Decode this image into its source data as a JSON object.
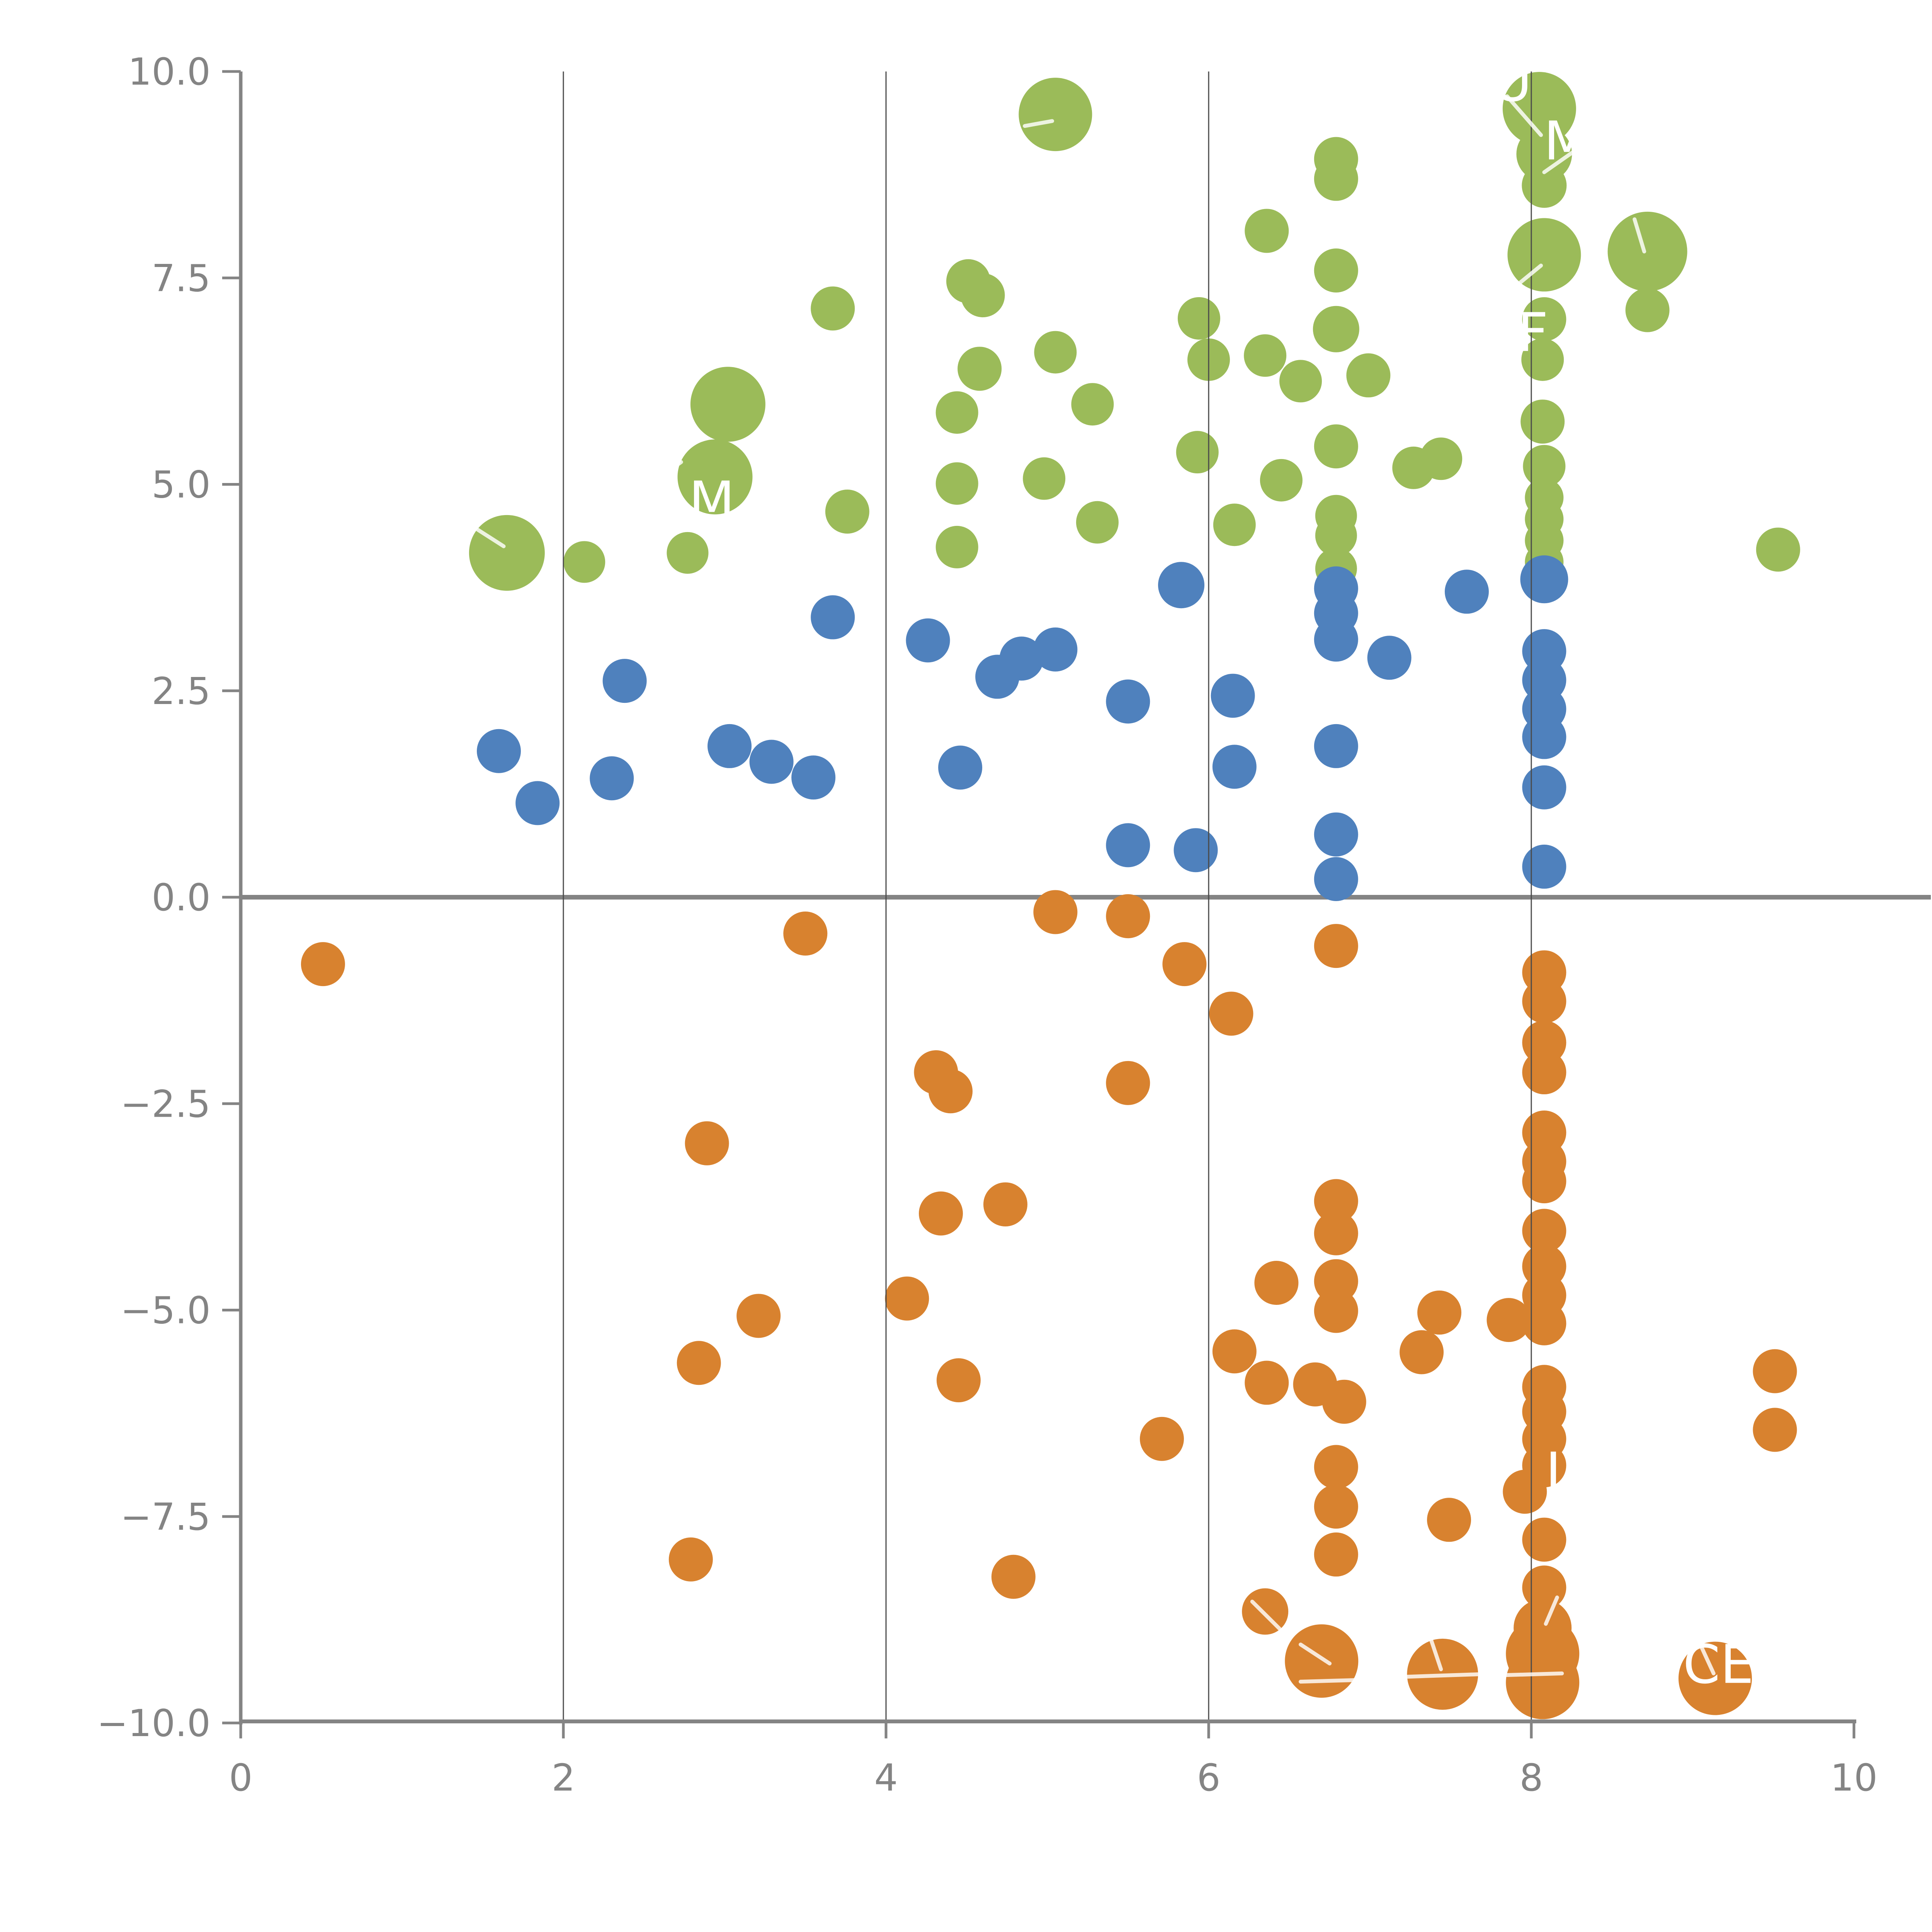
{
  "chart_data": {
    "type": "scatter",
    "title": "",
    "xlabel": "",
    "ylabel": "",
    "xlim": [
      0,
      10
    ],
    "ylim": [
      -10,
      10
    ],
    "x_ticks": [
      {
        "v": 0,
        "label": "0"
      },
      {
        "v": 2,
        "label": "2"
      },
      {
        "v": 4,
        "label": "4"
      },
      {
        "v": 6,
        "label": "6"
      },
      {
        "v": 8,
        "label": "8"
      },
      {
        "v": 10,
        "label": "10"
      }
    ],
    "y_ticks": [
      {
        "v": 10,
        "label": "10.0"
      },
      {
        "v": 7.5,
        "label": "7.5"
      },
      {
        "v": 5,
        "label": "5.0"
      },
      {
        "v": 2.5,
        "label": "2.5"
      },
      {
        "v": 0,
        "label": "0.0"
      },
      {
        "v": -2.5,
        "label": "−2.5"
      },
      {
        "v": -5,
        "label": "−5.0"
      },
      {
        "v": -7.5,
        "label": "−7.5"
      },
      {
        "v": -10,
        "label": "−10.0"
      }
    ],
    "gridlines_x": [
      2,
      4,
      6,
      8
    ],
    "zero_line_y": 0,
    "grid_on": true,
    "legend": "none",
    "colors": {
      "green": "#9BBB59",
      "blue": "#4F81BD",
      "orange": "#D8822F",
      "axis": "#848484",
      "gridline": "#4a4a4a",
      "zero_line": "#848484",
      "annotation": "#ffffff"
    },
    "series": [
      {
        "name": "green",
        "color": "#9BBB59",
        "points": [
          [
            1.65,
            4.17,
            98
          ],
          [
            2.13,
            4.06,
            54
          ],
          [
            2.77,
            4.17,
            54
          ],
          [
            3.02,
            5.97,
            97
          ],
          [
            2.94,
            5.09,
            97
          ],
          [
            3.67,
            7.13,
            57
          ],
          [
            3.76,
            4.67,
            57
          ],
          [
            4.44,
            5.87,
            55
          ],
          [
            4.44,
            5.01,
            55
          ],
          [
            4.44,
            4.24,
            55
          ],
          [
            4.51,
            7.46,
            57
          ],
          [
            4.6,
            7.29,
            57
          ],
          [
            4.58,
            6.4,
            57
          ],
          [
            4.98,
            5.07,
            55
          ],
          [
            5.05,
            9.48,
            95
          ],
          [
            5.05,
            6.6,
            55
          ],
          [
            5.28,
            5.97,
            55
          ],
          [
            5.31,
            4.54,
            55
          ],
          [
            5.93,
            5.39,
            55
          ],
          [
            5.94,
            7.01,
            55
          ],
          [
            6.0,
            6.51,
            55
          ],
          [
            6.16,
            4.51,
            55
          ],
          [
            6.35,
            6.56,
            55
          ],
          [
            6.36,
            8.07,
            57
          ],
          [
            6.45,
            5.05,
            55
          ],
          [
            6.57,
            6.25,
            55
          ],
          [
            6.79,
            8.94,
            57
          ],
          [
            6.79,
            8.7,
            57
          ],
          [
            6.79,
            7.59,
            57
          ],
          [
            6.79,
            6.88,
            60
          ],
          [
            6.79,
            5.46,
            57
          ],
          [
            6.79,
            4.62,
            54
          ],
          [
            6.79,
            4.38,
            54
          ],
          [
            6.79,
            3.98,
            54
          ],
          [
            6.99,
            6.32,
            57
          ],
          [
            7.27,
            5.2,
            55
          ],
          [
            7.44,
            5.31,
            55
          ],
          [
            8.05,
            9.55,
            95
          ],
          [
            8.08,
            9.0,
            72
          ],
          [
            8.08,
            8.62,
            58
          ],
          [
            8.08,
            7.78,
            95
          ],
          [
            8.08,
            7.0,
            57
          ],
          [
            8.07,
            6.51,
            55
          ],
          [
            8.07,
            5.76,
            57
          ],
          [
            8.08,
            5.22,
            55
          ],
          [
            8.08,
            4.84,
            50
          ],
          [
            8.08,
            4.58,
            50
          ],
          [
            8.08,
            4.32,
            50
          ],
          [
            8.08,
            4.06,
            50
          ],
          [
            8.72,
            7.82,
            103
          ],
          [
            8.72,
            7.11,
            57
          ],
          [
            9.53,
            4.21,
            57
          ]
        ]
      },
      {
        "name": "blue",
        "color": "#4F81BD",
        "points": [
          [
            1.6,
            1.77,
            57
          ],
          [
            1.84,
            1.14,
            57
          ],
          [
            2.3,
            1.44,
            57
          ],
          [
            2.38,
            2.62,
            57
          ],
          [
            3.03,
            1.83,
            57
          ],
          [
            3.29,
            1.64,
            57
          ],
          [
            3.55,
            1.45,
            57
          ],
          [
            3.67,
            3.39,
            57
          ],
          [
            4.26,
            3.11,
            57
          ],
          [
            4.46,
            1.57,
            57
          ],
          [
            4.69,
            2.67,
            57
          ],
          [
            4.84,
            2.89,
            57
          ],
          [
            5.05,
            3.0,
            57
          ],
          [
            5.5,
            2.37,
            57
          ],
          [
            5.5,
            0.63,
            57
          ],
          [
            5.83,
            3.78,
            60
          ],
          [
            5.92,
            0.57,
            57
          ],
          [
            6.15,
            2.44,
            57
          ],
          [
            6.16,
            1.58,
            57
          ],
          [
            6.79,
            3.74,
            57
          ],
          [
            6.79,
            3.44,
            57
          ],
          [
            6.79,
            3.12,
            57
          ],
          [
            6.79,
            1.83,
            57
          ],
          [
            6.79,
            0.76,
            57
          ],
          [
            6.79,
            0.22,
            57
          ],
          [
            7.12,
            2.9,
            57
          ],
          [
            7.6,
            3.7,
            57
          ],
          [
            8.08,
            3.85,
            62
          ],
          [
            8.08,
            2.98,
            57
          ],
          [
            8.08,
            2.63,
            57
          ],
          [
            8.08,
            2.28,
            57
          ],
          [
            8.08,
            1.94,
            57
          ],
          [
            8.08,
            1.33,
            57
          ],
          [
            8.08,
            0.37,
            57
          ]
        ]
      },
      {
        "name": "orange",
        "color": "#D8822F",
        "points": [
          [
            0.51,
            -0.81,
            57
          ],
          [
            2.79,
            -8.02,
            57
          ],
          [
            2.84,
            -5.64,
            57
          ],
          [
            2.89,
            -2.98,
            57
          ],
          [
            3.21,
            -5.07,
            57
          ],
          [
            3.5,
            -0.44,
            57
          ],
          [
            4.13,
            -4.86,
            57
          ],
          [
            4.31,
            -2.12,
            57
          ],
          [
            4.4,
            -2.35,
            57
          ],
          [
            4.34,
            -3.83,
            57
          ],
          [
            4.45,
            -5.85,
            57
          ],
          [
            4.74,
            -3.72,
            57
          ],
          [
            4.79,
            -8.23,
            57
          ],
          [
            5.05,
            -0.18,
            57
          ],
          [
            5.5,
            -0.23,
            57
          ],
          [
            5.5,
            -2.25,
            57
          ],
          [
            5.71,
            -6.56,
            57
          ],
          [
            5.85,
            -0.81,
            57
          ],
          [
            6.14,
            -1.41,
            57
          ],
          [
            6.16,
            -5.5,
            57
          ],
          [
            6.36,
            -5.88,
            57
          ],
          [
            6.66,
            -5.9,
            57
          ],
          [
            6.84,
            -6.11,
            57
          ],
          [
            6.42,
            -4.67,
            57
          ],
          [
            6.35,
            -8.65,
            60
          ],
          [
            6.7,
            -9.25,
            95
          ],
          [
            6.79,
            -0.59,
            57
          ],
          [
            6.79,
            -3.68,
            57
          ],
          [
            6.79,
            -4.07,
            57
          ],
          [
            6.79,
            -4.65,
            57
          ],
          [
            6.79,
            -5.01,
            57
          ],
          [
            6.79,
            -6.9,
            57
          ],
          [
            6.79,
            -7.38,
            57
          ],
          [
            6.79,
            -7.96,
            57
          ],
          [
            7.32,
            -5.51,
            57
          ],
          [
            7.43,
            -5.03,
            57
          ],
          [
            7.49,
            -7.54,
            57
          ],
          [
            7.45,
            -9.41,
            92
          ],
          [
            7.86,
            -5.12,
            57
          ],
          [
            8.08,
            -0.91,
            57
          ],
          [
            8.08,
            -1.26,
            57
          ],
          [
            8.08,
            -1.76,
            57
          ],
          [
            8.08,
            -2.12,
            57
          ],
          [
            8.08,
            -2.85,
            57
          ],
          [
            8.08,
            -3.2,
            57
          ],
          [
            8.08,
            -3.44,
            57
          ],
          [
            8.08,
            -4.04,
            57
          ],
          [
            8.08,
            -4.47,
            57
          ],
          [
            8.08,
            -4.82,
            57
          ],
          [
            8.08,
            -5.16,
            57
          ],
          [
            8.08,
            -5.93,
            57
          ],
          [
            8.08,
            -6.23,
            57
          ],
          [
            8.08,
            -6.56,
            57
          ],
          [
            8.08,
            -6.88,
            57
          ],
          [
            7.96,
            -7.2,
            57
          ],
          [
            8.08,
            -7.78,
            57
          ],
          [
            8.08,
            -8.36,
            57
          ],
          [
            8.07,
            -8.85,
            75
          ],
          [
            8.07,
            -9.16,
            95
          ],
          [
            8.07,
            -9.51,
            95
          ],
          [
            9.14,
            -9.46,
            95
          ],
          [
            9.51,
            -5.74,
            57
          ],
          [
            9.51,
            -6.45,
            57
          ]
        ]
      }
    ],
    "annotations": [
      {
        "text": "AU",
        "x": 7.77,
        "y": 9.87
      },
      {
        "text": "M",
        "x": 8.22,
        "y": 9.16
      },
      {
        "text": "M",
        "x": 2.92,
        "y": 4.8
      },
      {
        "text": "F",
        "x": 8.01,
        "y": 6.84
      },
      {
        "text": "L",
        "x": 8.18,
        "y": -6.96
      },
      {
        "text": "CE",
        "x": 9.16,
        "y": -9.29
      }
    ],
    "leader_lines": [
      [
        1.47,
        4.45,
        1.63,
        4.25
      ],
      [
        2.48,
        6.21,
        2.68,
        6.07
      ],
      [
        2.58,
        5.06,
        2.73,
        5.27
      ],
      [
        4.86,
        9.34,
        5.03,
        9.4
      ],
      [
        7.85,
        9.7,
        8.06,
        9.23
      ],
      [
        8.27,
        9.04,
        8.08,
        8.78
      ],
      [
        7.91,
        7.41,
        8.06,
        7.65
      ],
      [
        8.64,
        8.21,
        8.7,
        7.82
      ],
      [
        6.27,
        -8.53,
        6.44,
        -8.86
      ],
      [
        6.57,
        -9.05,
        6.75,
        -9.28
      ],
      [
        6.57,
        -9.5,
        6.92,
        -9.48
      ],
      [
        7.38,
        -9.0,
        7.44,
        -9.35
      ],
      [
        7.23,
        -9.44,
        7.68,
        -9.41
      ],
      [
        8.16,
        -8.48,
        8.09,
        -8.8
      ],
      [
        7.85,
        -9.42,
        8.19,
        -9.4
      ],
      [
        9.05,
        -9.06,
        9.13,
        -9.4
      ]
    ]
  }
}
